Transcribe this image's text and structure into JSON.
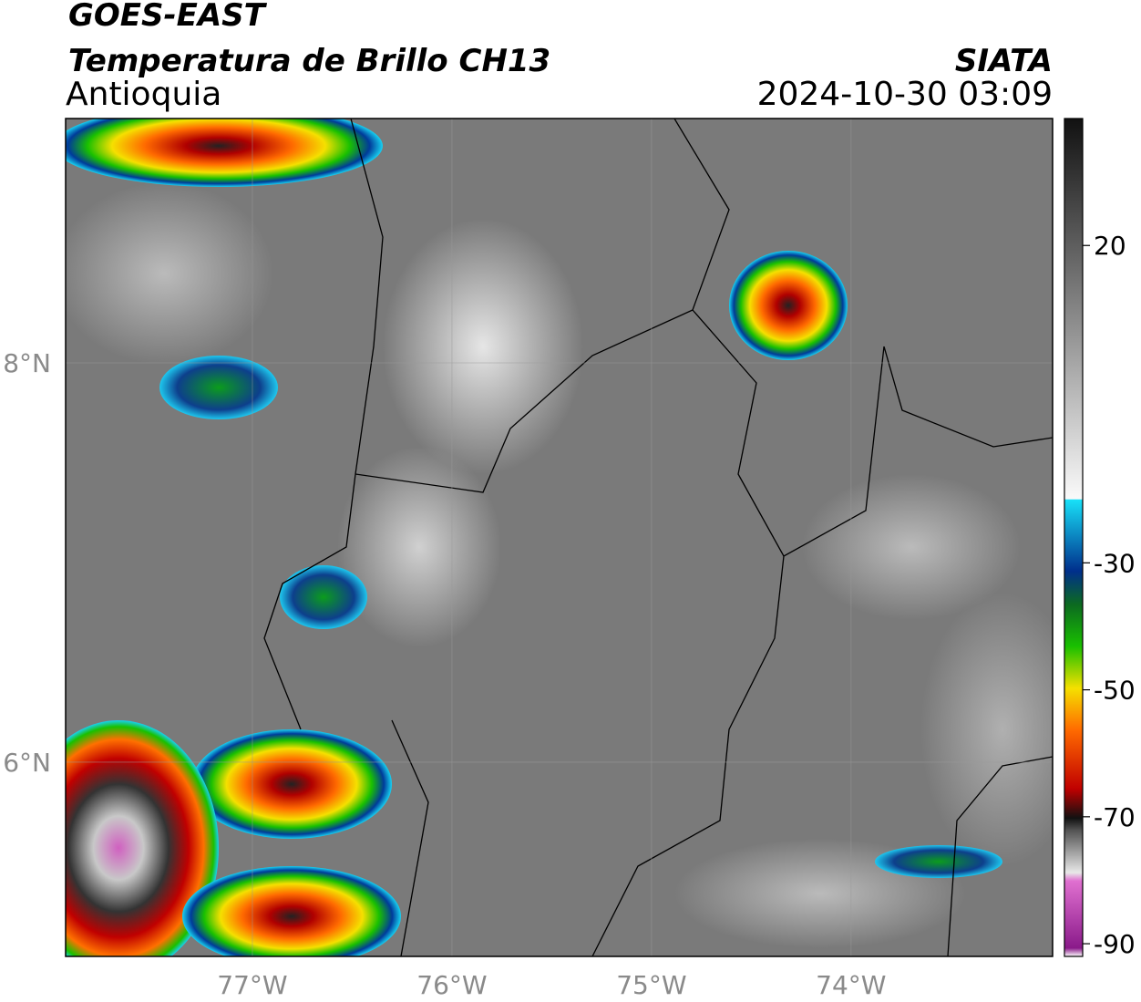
{
  "header": {
    "satellite": "GOES-EAST",
    "product": "Temperatura de Brillo CH13",
    "region": "Antioquia",
    "agency": "SIATA",
    "datetime": "2024-10-30 03:09"
  },
  "map": {
    "xlim": [
      -77.936,
      -72.99
    ],
    "ylim": [
      5.027,
      9.224
    ],
    "xticks": [
      {
        "value": -77,
        "label": "77°W"
      },
      {
        "value": -76,
        "label": "76°W"
      },
      {
        "value": -75,
        "label": "75°W"
      },
      {
        "value": -74,
        "label": "74°W"
      }
    ],
    "yticks": [
      {
        "value": 8,
        "label": "8°N"
      },
      {
        "value": 6,
        "label": "6°N"
      }
    ],
    "grid": true
  },
  "colorbar": {
    "lim": [
      -92,
      40
    ],
    "ticks": [
      20,
      -30,
      -50,
      -70,
      -90
    ]
  }
}
